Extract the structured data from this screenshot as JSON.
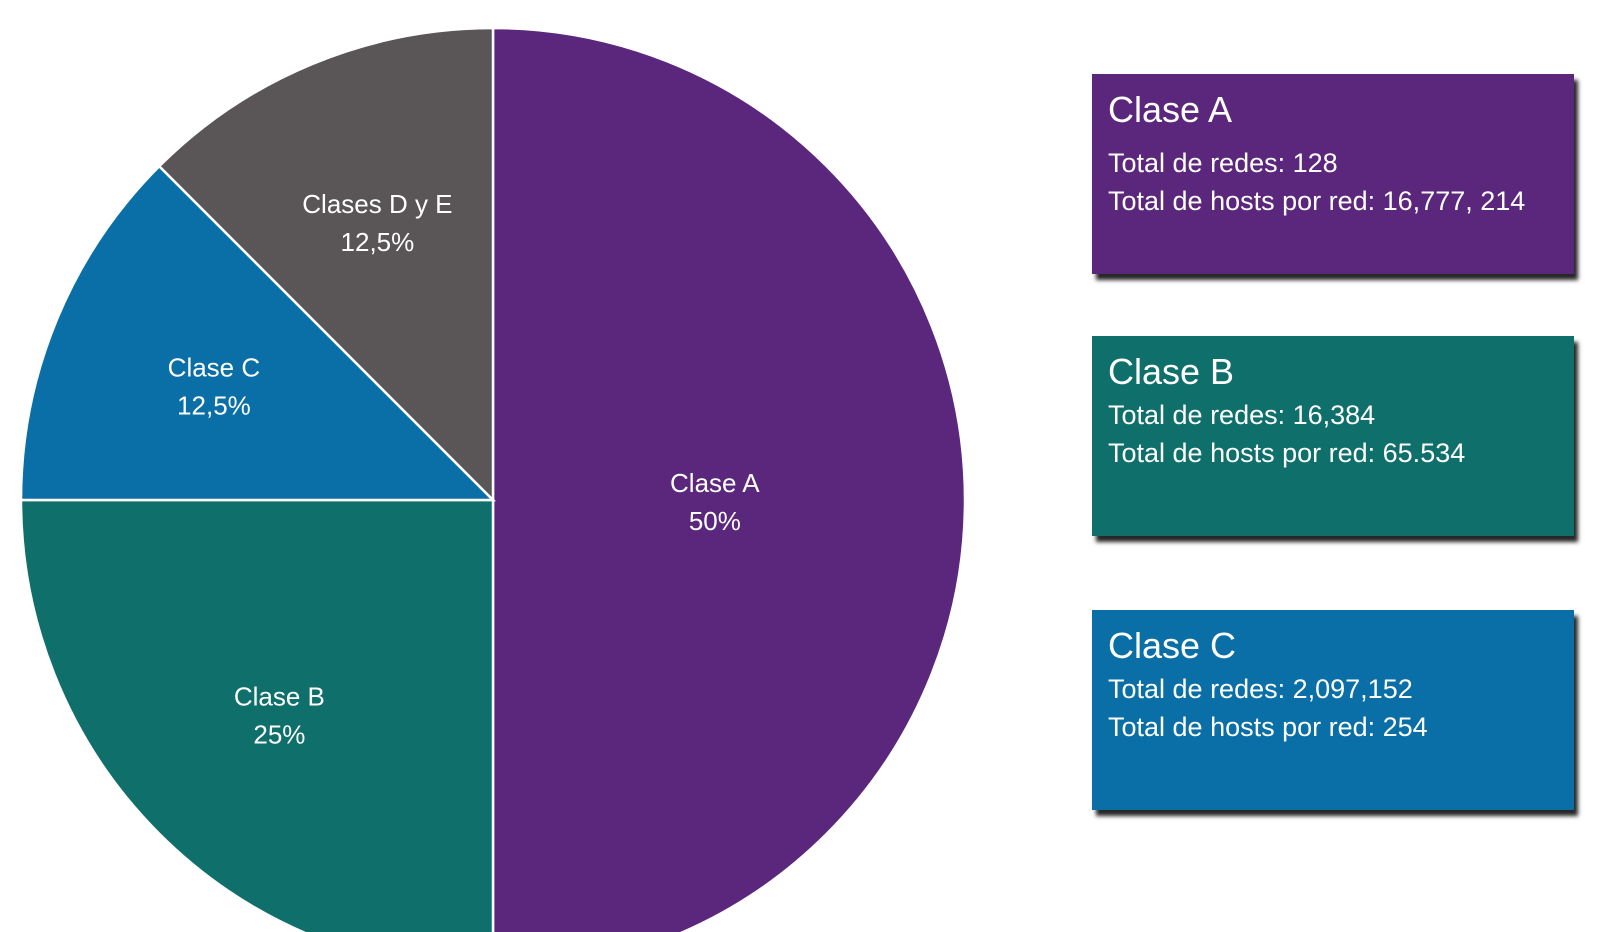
{
  "chart_data": {
    "type": "pie",
    "slices": [
      {
        "label": "Clase A",
        "value": 50,
        "pct_label": "50%",
        "color": "#5B277C"
      },
      {
        "label": "Clase B",
        "value": 25,
        "pct_label": "25%",
        "color": "#0F6F6A"
      },
      {
        "label": "Clase C",
        "value": 12.5,
        "pct_label": "12,5%",
        "color": "#0A6FA6"
      },
      {
        "label": "Clases D y E",
        "value": 12.5,
        "pct_label": "12,5%",
        "color": "#5A5657"
      }
    ]
  },
  "cards": [
    {
      "title": "Clase A",
      "networks": "Total de redes: 128",
      "hosts": "Total de hosts por red: 16,777, 214",
      "color": "#5B277C"
    },
    {
      "title": "Clase B",
      "networks": "Total de redes: 16,384",
      "hosts": "Total de hosts por red: 65.534",
      "color": "#0F6F6A"
    },
    {
      "title": "Clase C",
      "networks": "Total de redes: 2,097,152",
      "hosts": "Total de hosts por red: 254",
      "color": "#0A6FA6"
    }
  ]
}
